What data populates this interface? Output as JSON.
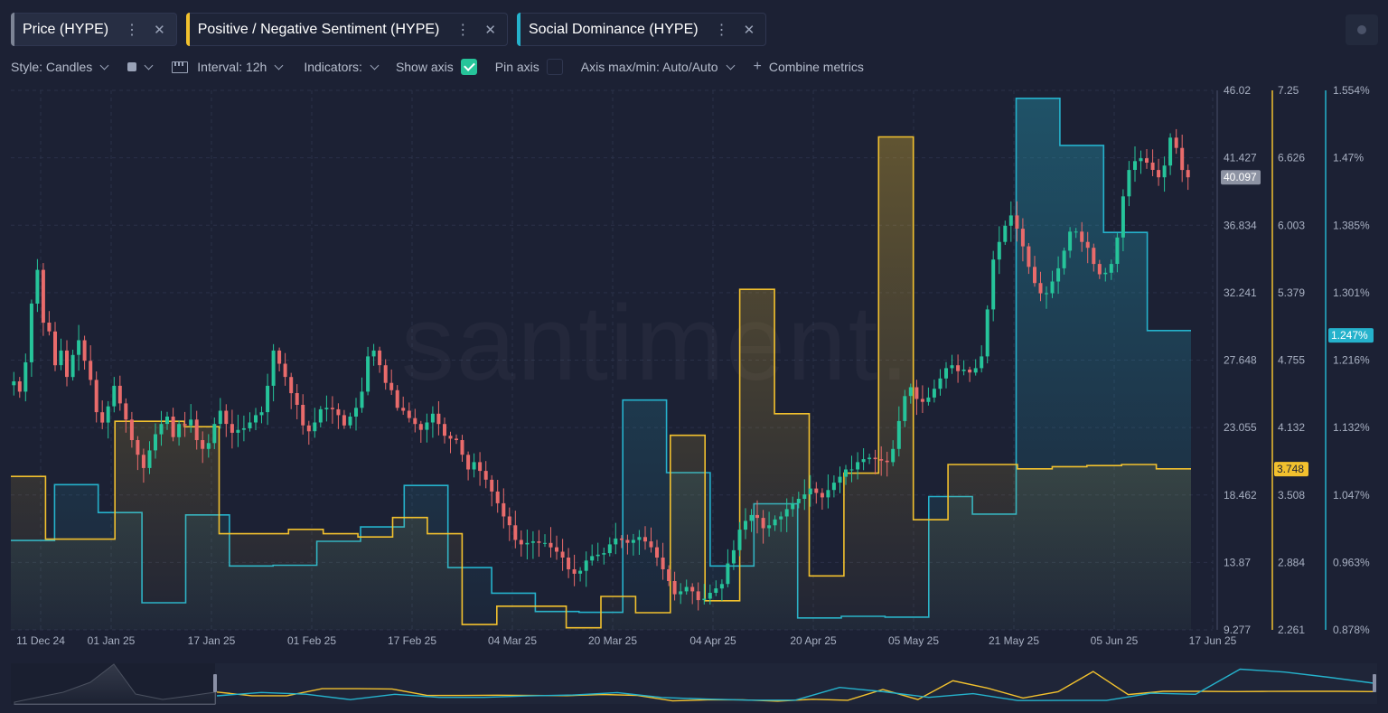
{
  "tabs": [
    {
      "label": "Price (HYPE)",
      "color": "#7d8596",
      "active": true
    },
    {
      "label": "Positive / Negative Sentiment (HYPE)",
      "color": "#f2c12e",
      "active": false
    },
    {
      "label": "Social Dominance (HYPE)",
      "color": "#25b2cc",
      "active": false
    }
  ],
  "icons": {
    "menu": "vertical-dots-icon",
    "close": "close-icon",
    "check": "checkmark-icon",
    "plus": "plus-icon",
    "chevron": "chevron-down-icon",
    "interval": "calendar-icon"
  },
  "toolbar": {
    "style_label": "Style: Candles",
    "interval_label": "Interval: 12h",
    "indicators_label": "Indicators:",
    "show_axis_label": "Show axis",
    "show_axis_checked": true,
    "pin_axis_label": "Pin axis",
    "pin_axis_checked": false,
    "axis_label": "Axis max/min: Auto/Auto",
    "combine_label": "Combine metrics"
  },
  "watermark": "santiment.",
  "chart_data": {
    "type": "line",
    "x_ticks": [
      "11 Dec 24",
      "01 Jan 25",
      "17 Jan 25",
      "01 Feb 25",
      "17 Feb 25",
      "04 Mar 25",
      "20 Mar 25",
      "04 Apr 25",
      "20 Apr 25",
      "05 May 25",
      "21 May 25",
      "05 Jun 25",
      "17 Jun 25"
    ],
    "axes": {
      "price": {
        "ticks": [
          "46.02",
          "41.427",
          "36.834",
          "32.241",
          "27.648",
          "23.055",
          "18.462",
          "13.87",
          "9.277"
        ],
        "min": 9.277,
        "max": 46.02,
        "current": "40.097",
        "color": "#8a90a0"
      },
      "sentiment": {
        "ticks": [
          "7.25",
          "6.626",
          "6.003",
          "5.379",
          "4.755",
          "4.132",
          "3.508",
          "2.884",
          "2.261"
        ],
        "min": 2.261,
        "max": 7.25,
        "current": "3.748",
        "color": "#f2c12e"
      },
      "dominance": {
        "ticks": [
          "1.554%",
          "1.47%",
          "1.385%",
          "1.301%",
          "1.216%",
          "1.132%",
          "1.047%",
          "0.963%",
          "0.878%"
        ],
        "min": 0.878,
        "max": 1.554,
        "current": "1.247%",
        "color": "#25b2cc"
      }
    },
    "series": [
      {
        "name": "Price (HYPE)",
        "kind": "candles",
        "color_up": "#26c49a",
        "color_down": "#e96b6b",
        "x_start": "10 Dec 24",
        "x_end": "15 Jun 25",
        "closes": [
          26.2,
          25.5,
          27.5,
          31.5,
          33.8,
          30.2,
          29.6,
          27.3,
          28.3,
          26.5,
          28.0,
          29.0,
          27.6,
          26.3,
          24.1,
          23.4,
          24.5,
          25.9,
          24.7,
          23.6,
          22.2,
          21.2,
          20.3,
          21.5,
          22.6,
          23.3,
          23.8,
          22.4,
          23.3,
          23.2,
          23.6,
          22.2,
          21.6,
          22.0,
          23.3,
          24.2,
          23.3,
          22.7,
          22.9,
          23.0,
          23.4,
          23.9,
          24.1,
          25.9,
          28.3,
          27.4,
          26.5,
          25.4,
          24.6,
          23.2,
          22.8,
          23.4,
          24.3,
          24.4,
          24.3,
          23.9,
          23.2,
          23.8,
          24.4,
          25.5,
          27.9,
          28.3,
          27.3,
          26.1,
          25.6,
          24.4,
          24.2,
          23.7,
          23.3,
          22.9,
          23.4,
          24.0,
          23.3,
          22.5,
          22.3,
          22.2,
          21.2,
          20.2,
          20.7,
          20.1,
          19.5,
          18.7,
          17.9,
          17.0,
          16.4,
          15.4,
          15.1,
          15.2,
          15.3,
          15.2,
          15.2,
          14.9,
          14.6,
          14.2,
          13.4,
          13.1,
          13.3,
          14.0,
          14.3,
          14.4,
          14.5,
          15.1,
          15.5,
          15.4,
          15.2,
          15.4,
          15.6,
          15.3,
          14.9,
          14.2,
          13.4,
          12.6,
          11.7,
          11.9,
          12.2,
          11.9,
          11.3,
          11.4,
          11.8,
          12.1,
          12.4,
          13.8,
          14.7,
          16.1,
          16.7,
          17.1,
          16.9,
          16.2,
          16.4,
          16.8,
          17.0,
          17.5,
          17.9,
          18.2,
          18.5,
          18.9,
          18.6,
          18.3,
          18.8,
          19.3,
          19.7,
          20.2,
          20.2,
          20.7,
          20.9,
          21.0,
          20.9,
          20.8,
          20.7,
          21.6,
          23.5,
          25.2,
          25.8,
          25.0,
          24.8,
          25.1,
          25.7,
          26.4,
          27.1,
          27.3,
          26.9,
          27.0,
          26.8,
          27.1,
          27.9,
          31.1,
          34.5,
          35.7,
          36.8,
          37.5,
          36.6,
          35.4,
          34.0,
          32.9,
          32.2,
          32.2,
          33.0,
          33.9,
          35.1,
          36.4,
          36.4,
          35.7,
          35.3,
          34.2,
          33.5,
          33.6,
          34.2,
          36.0,
          38.8,
          40.6,
          41.2,
          41.4,
          41.1,
          40.6,
          40.1,
          40.9,
          42.8,
          42.1,
          40.6,
          40.1
        ]
      },
      {
        "name": "Positive / Negative Sentiment (HYPE)",
        "kind": "step-area",
        "color": "#f2c12e",
        "values": [
          3.68,
          3.1,
          3.1,
          4.19,
          4.19,
          4.14,
          3.15,
          3.15,
          3.19,
          3.15,
          3.12,
          3.3,
          3.15,
          2.31,
          2.48,
          2.48,
          2.28,
          2.57,
          2.42,
          4.06,
          2.53,
          5.41,
          4.26,
          2.76,
          3.71,
          6.82,
          3.28,
          3.79,
          3.79,
          3.75,
          3.77,
          3.78,
          3.79,
          3.75
        ]
      },
      {
        "name": "Social Dominance (HYPE)",
        "kind": "step-area",
        "color": "#25b2cc",
        "values": [
          0.99,
          1.06,
          1.025,
          0.912,
          1.022,
          0.958,
          0.959,
          0.989,
          1.007,
          1.059,
          0.956,
          0.924,
          0.901,
          0.9,
          1.166,
          1.075,
          0.958,
          1.036,
          0.893,
          0.895,
          0.894,
          1.045,
          1.023,
          1.544,
          1.485,
          1.376,
          1.253
        ]
      }
    ],
    "grid": true,
    "legend": "none"
  }
}
